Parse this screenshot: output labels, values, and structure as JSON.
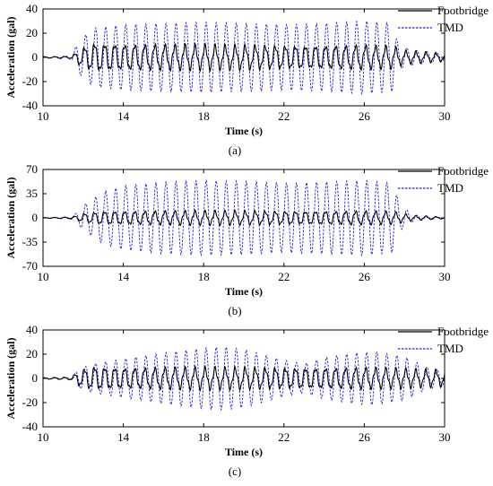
{
  "colors": {
    "footbridge": "#000000",
    "tmd": "#1f1fd6",
    "axis": "#000000"
  },
  "chart_data": [
    {
      "type": "line",
      "panel_label": "(a)",
      "xlabel": "Time (s)",
      "ylabel": "Acceleration (gal)",
      "xlim": [
        10,
        30
      ],
      "ylim": [
        -40,
        40
      ],
      "xticks": [
        10,
        14,
        18,
        22,
        26,
        30
      ],
      "yticks": [
        -40,
        -20,
        0,
        20,
        40
      ],
      "grid": false,
      "legend_position": "top-right",
      "series": [
        {
          "name": "Footbridge",
          "line_style": "solid",
          "frequency_hz": 2.0,
          "envelope": {
            "t": [
              10,
              11.4,
              11.8,
              12.5,
              14,
              18,
              22,
              26,
              27.4,
              28,
              30
            ],
            "amplitude": [
              0.5,
              0.8,
              6,
              11,
              10,
              9,
              9,
              9,
              8,
              5,
              3
            ]
          }
        },
        {
          "name": "TMD",
          "line_style": "dashed",
          "frequency_hz": 2.0,
          "envelope": {
            "t": [
              10,
              11.4,
              11.8,
              12.5,
              14,
              16,
              18,
              20,
              22,
              24,
              26,
              27.4,
              27.7,
              28.5,
              30
            ],
            "amplitude": [
              0.3,
              1.5,
              14,
              24,
              27,
              28,
              29,
              28,
              27,
              28,
              30,
              28,
              10,
              6,
              3
            ]
          }
        }
      ]
    },
    {
      "type": "line",
      "panel_label": "(b)",
      "xlabel": "Time (s)",
      "ylabel": "Acceleration (gal)",
      "xlim": [
        10,
        30
      ],
      "ylim": [
        -70,
        70
      ],
      "xticks": [
        10,
        14,
        18,
        22,
        26,
        30
      ],
      "yticks": [
        -70,
        -35,
        0,
        35,
        70
      ],
      "grid": false,
      "legend_position": "top-right",
      "series": [
        {
          "name": "Footbridge",
          "line_style": "solid",
          "frequency_hz": 2.0,
          "envelope": {
            "t": [
              10,
              11.4,
              12,
              13,
              14,
              18,
              22,
              26,
              27.4,
              28.5,
              30
            ],
            "amplitude": [
              0.3,
              1,
              6,
              9,
              9,
              9,
              9,
              9,
              8,
              3,
              1
            ]
          }
        },
        {
          "name": "TMD",
          "line_style": "dashed",
          "frequency_hz": 2.0,
          "envelope": {
            "t": [
              10,
              11.5,
              12,
              13,
              14,
              16,
              18,
              20,
              22,
              24,
              26,
              27.4,
              27.8,
              28.5,
              30
            ],
            "amplitude": [
              0.3,
              2,
              18,
              38,
              46,
              52,
              54,
              53,
              50,
              52,
              54,
              50,
              18,
              4,
              1
            ]
          }
        }
      ]
    },
    {
      "type": "line",
      "panel_label": "(c)",
      "xlabel": "Time (s)",
      "ylabel": "Acceleration (gal)",
      "xlim": [
        10,
        30
      ],
      "ylim": [
        -40,
        40
      ],
      "xticks": [
        10,
        14,
        18,
        22,
        26,
        30
      ],
      "yticks": [
        -40,
        -20,
        0,
        20,
        40
      ],
      "grid": false,
      "legend_position": "top-right",
      "series": [
        {
          "name": "Footbridge",
          "line_style": "solid",
          "frequency_hz": 2.0,
          "envelope": {
            "t": [
              10,
              11.4,
              11.8,
              12.5,
              14,
              18,
              22,
              26,
              28,
              30
            ],
            "amplitude": [
              0.5,
              1,
              6,
              9,
              8,
              8,
              8,
              8,
              7,
              6
            ]
          }
        },
        {
          "name": "TMD",
          "line_style": "dashed",
          "frequency_hz": 2.0,
          "envelope": {
            "t": [
              10,
              11.4,
              11.8,
              12.5,
              14,
              16,
              18,
              19,
              20,
              22,
              23,
              24,
              25.5,
              26.5,
              28,
              29,
              30
            ],
            "amplitude": [
              0.3,
              1,
              8,
              12,
              16,
              21,
              25,
              26,
              24,
              15,
              12,
              17,
              21,
              22,
              18,
              10,
              6
            ]
          }
        }
      ]
    }
  ]
}
